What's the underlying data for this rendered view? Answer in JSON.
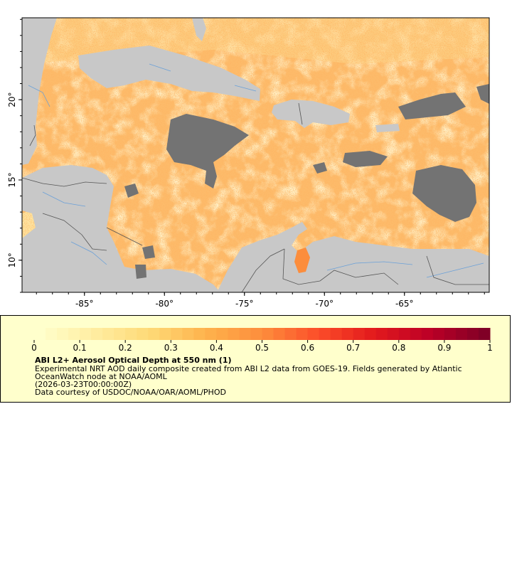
{
  "map": {
    "lon_ticks": [
      {
        "value": -85,
        "label": "-85°"
      },
      {
        "value": -80,
        "label": "-80°"
      },
      {
        "value": -75,
        "label": "-75°"
      },
      {
        "value": -70,
        "label": "-70°"
      },
      {
        "value": -65,
        "label": "-65°"
      }
    ],
    "lat_ticks": [
      {
        "value": 20,
        "label": "20°"
      },
      {
        "value": 15,
        "label": "15°"
      },
      {
        "value": 10,
        "label": "10°"
      }
    ],
    "lon_range": [
      -88.9,
      -59.7
    ],
    "lat_range": [
      8.0,
      25.1
    ],
    "colors": {
      "land": "#c8c8c8",
      "no_data": "#737373",
      "rivers": "#6aa0d8",
      "borders": "#555555"
    }
  },
  "legend": {
    "colorbar_ticks": [
      "0",
      "0.1",
      "0.2",
      "0.3",
      "0.4",
      "0.5",
      "0.6",
      "0.7",
      "0.8",
      "0.9",
      "1"
    ],
    "colorbar_range": [
      0,
      1
    ],
    "title": "ABI L2+ Aerosol Optical Depth at 550 nm (1)",
    "description": "Experimental NRT AOD daily composite created from ABI L2 data from GOES-19. Fields generated by Atlantic OceanWatch node at NOAA/AOML",
    "time": "(2026-03-23T00:00:00Z)",
    "credit": "Data courtesy of USDOC/NOAA/OAR/AOML/PHOD",
    "colormap": [
      "#ffffcc",
      "#ffeda0",
      "#fed976",
      "#feb24c",
      "#fd8d3c",
      "#fc4e2a",
      "#e31a1c",
      "#bd0026",
      "#800026"
    ]
  }
}
